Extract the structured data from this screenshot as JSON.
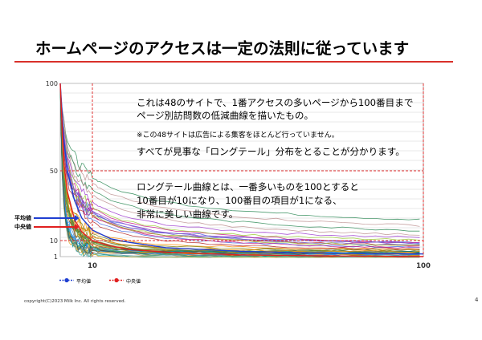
{
  "slide": {
    "title": "ホームページのアクセスは一定の法則に従っています",
    "note1_line1": "これは48のサイトで、1番アクセスの多いページから100番目まで",
    "note1_line2": "ページ別訪問数の低減曲線を描いたもの。",
    "note_small": "※この48サイトは広告による集客をほとんど行っていません。",
    "note2": "すべてが見事な「ロングテール」分布をとることが分かります。",
    "note3_line1": "ロングテール曲線とは、一番多いものを100とすると",
    "note3_line2": "10番目が10になり、100番目の項目が1になる、",
    "note3_line3": "非常に美しい曲線です。",
    "footer": "copyright(C)2023 Milk Inc. All rights reserved.",
    "page_number": "4"
  },
  "colors": {
    "title_rule": "#d9302a",
    "average": "#1f3fd1",
    "median": "#e02020",
    "reference": "#e03030"
  },
  "chart_data": {
    "type": "line",
    "title": "",
    "xlabel": "",
    "ylabel": "",
    "x_ticks": [
      "10",
      "100"
    ],
    "y_ticks": [
      "100",
      "50",
      "10",
      "1"
    ],
    "x_range": [
      1,
      100
    ],
    "y_range": [
      0,
      100
    ],
    "grid": true,
    "series_count": 48,
    "annotations": {
      "average_label": "平均値",
      "median_label": "中央値"
    },
    "legend": [
      {
        "label": "平均値",
        "color": "#1f3fd1"
      },
      {
        "label": "中央値",
        "color": "#e02020"
      }
    ],
    "reference_lines": {
      "x": [
        10,
        100
      ],
      "y": [
        50,
        10
      ]
    },
    "summary_series": [
      {
        "name": "平均値",
        "x": [
          1,
          2,
          3,
          5,
          7,
          10,
          15,
          20,
          30,
          50,
          70,
          100
        ],
        "values": [
          100,
          68,
          50,
          33,
          23,
          16,
          11,
          9,
          6,
          4,
          3,
          2.5
        ]
      },
      {
        "name": "中央値",
        "x": [
          1,
          2,
          3,
          5,
          7,
          10,
          15,
          20,
          30,
          50,
          70,
          100
        ],
        "values": [
          100,
          55,
          38,
          22,
          15,
          10,
          7,
          5,
          3.5,
          2,
          1.5,
          1
        ]
      }
    ]
  }
}
